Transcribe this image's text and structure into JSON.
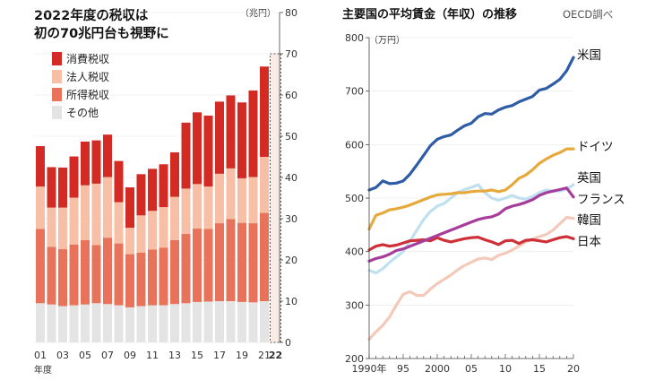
{
  "chart_data": [
    {
      "type": "bar",
      "stacked": true,
      "title_lines": [
        "2022年度の税収は",
        "初の70兆円台も視野に"
      ],
      "unit_label": "（兆円）",
      "xlabel": "年度",
      "ylim": [
        0,
        80
      ],
      "yticks": [
        0,
        10,
        20,
        30,
        40,
        50,
        60,
        70,
        80
      ],
      "tick_labels": [
        "01",
        "03",
        "05",
        "07",
        "09",
        "11",
        "13",
        "15",
        "17",
        "19",
        "21",
        "22"
      ],
      "categories": [
        "2001",
        "2002",
        "2003",
        "2004",
        "2005",
        "2006",
        "2007",
        "2008",
        "2009",
        "2010",
        "2011",
        "2012",
        "2013",
        "2014",
        "2015",
        "2016",
        "2017",
        "2018",
        "2019",
        "2020",
        "2021"
      ],
      "series": [
        {
          "name": "その他",
          "color": "#e4e4e4",
          "values": [
            9.5,
            9.2,
            8.8,
            9.0,
            9.2,
            9.5,
            9.3,
            9.0,
            8.5,
            8.8,
            9.0,
            9.0,
            9.3,
            9.5,
            9.8,
            9.9,
            10.0,
            10.0,
            9.8,
            9.7,
            10.0
          ]
        },
        {
          "name": "所得税収",
          "color": "#e8735a",
          "values": [
            18.0,
            14.0,
            13.8,
            14.7,
            15.6,
            14.1,
            16.1,
            15.0,
            12.9,
            13.0,
            13.5,
            14.0,
            15.5,
            16.8,
            17.8,
            17.6,
            18.9,
            19.9,
            19.2,
            19.2,
            21.4
          ]
        },
        {
          "name": "法人税収",
          "color": "#f6bfa6",
          "values": [
            10.3,
            9.5,
            10.1,
            11.4,
            13.3,
            14.9,
            14.7,
            10.0,
            6.4,
            9.0,
            9.4,
            9.8,
            10.5,
            11.0,
            10.8,
            10.3,
            12.0,
            12.3,
            10.8,
            11.2,
            13.6
          ]
        },
        {
          "name": "消費税収",
          "color": "#d42a24",
          "values": [
            9.8,
            9.8,
            9.7,
            10.0,
            10.6,
            10.5,
            10.3,
            10.0,
            9.8,
            10.0,
            10.2,
            10.4,
            10.8,
            16.0,
            17.4,
            17.2,
            17.5,
            17.7,
            18.4,
            21.0,
            21.9
          ]
        }
      ],
      "projection": {
        "category": "2022",
        "value": 70,
        "label": "22"
      },
      "legend_position": "top-left"
    },
    {
      "type": "line",
      "title": "主要国の平均賃金（年収）の推移",
      "source": "OECD調べ",
      "unit_label": "（万円）",
      "ylim": [
        200,
        800
      ],
      "yticks": [
        200,
        300,
        400,
        500,
        600,
        700,
        800
      ],
      "xlim": [
        1990,
        2020
      ],
      "xticks": [
        1990,
        1995,
        2000,
        2005,
        2010,
        2015,
        2020
      ],
      "xtick_labels": [
        "1990年",
        "95",
        "2000",
        "05",
        "10",
        "15",
        "20"
      ],
      "x": [
        1990,
        1991,
        1992,
        1993,
        1994,
        1995,
        1996,
        1997,
        1998,
        1999,
        2000,
        2001,
        2002,
        2003,
        2004,
        2005,
        2006,
        2007,
        2008,
        2009,
        2010,
        2011,
        2012,
        2013,
        2014,
        2015,
        2016,
        2017,
        2018,
        2019,
        2020
      ],
      "series": [
        {
          "name": "米国",
          "color": "#2f5ca6",
          "values": [
            515,
            520,
            532,
            527,
            528,
            532,
            545,
            562,
            580,
            598,
            610,
            615,
            618,
            627,
            635,
            640,
            652,
            658,
            657,
            665,
            670,
            673,
            680,
            685,
            690,
            702,
            705,
            713,
            722,
            738,
            763
          ]
        },
        {
          "name": "ドイツ",
          "color": "#e6a93b",
          "values": [
            442,
            468,
            472,
            478,
            480,
            483,
            487,
            492,
            497,
            502,
            506,
            507,
            508,
            510,
            510,
            512,
            513,
            513,
            515,
            512,
            515,
            525,
            537,
            543,
            553,
            565,
            573,
            580,
            585,
            592,
            592
          ]
        },
        {
          "name": "英国",
          "color": "#bfe0ef",
          "values": [
            365,
            360,
            368,
            380,
            390,
            400,
            420,
            440,
            460,
            475,
            485,
            490,
            500,
            510,
            516,
            520,
            525,
            510,
            500,
            496,
            500,
            505,
            500,
            498,
            503,
            510,
            515,
            513,
            513,
            517,
            525
          ]
        },
        {
          "name": "フランス",
          "color": "#a63d9b",
          "values": [
            382,
            387,
            390,
            395,
            402,
            405,
            410,
            415,
            420,
            425,
            430,
            435,
            440,
            445,
            450,
            455,
            460,
            463,
            465,
            470,
            480,
            485,
            488,
            492,
            497,
            505,
            510,
            513,
            516,
            519,
            502
          ]
        },
        {
          "name": "韓国",
          "color": "#f4c9ba",
          "values": [
            236,
            250,
            262,
            278,
            300,
            320,
            325,
            318,
            318,
            330,
            340,
            348,
            356,
            366,
            374,
            380,
            386,
            388,
            385,
            393,
            397,
            403,
            410,
            418,
            423,
            428,
            432,
            440,
            452,
            464,
            462
          ]
        },
        {
          "name": "日本",
          "color": "#cf3038",
          "values": [
            403,
            410,
            413,
            410,
            412,
            416,
            420,
            421,
            422,
            420,
            426,
            421,
            418,
            421,
            424,
            426,
            427,
            422,
            418,
            413,
            420,
            421,
            415,
            421,
            422,
            420,
            418,
            422,
            426,
            428,
            424
          ]
        }
      ],
      "legend_position": "right end of lines"
    }
  ]
}
